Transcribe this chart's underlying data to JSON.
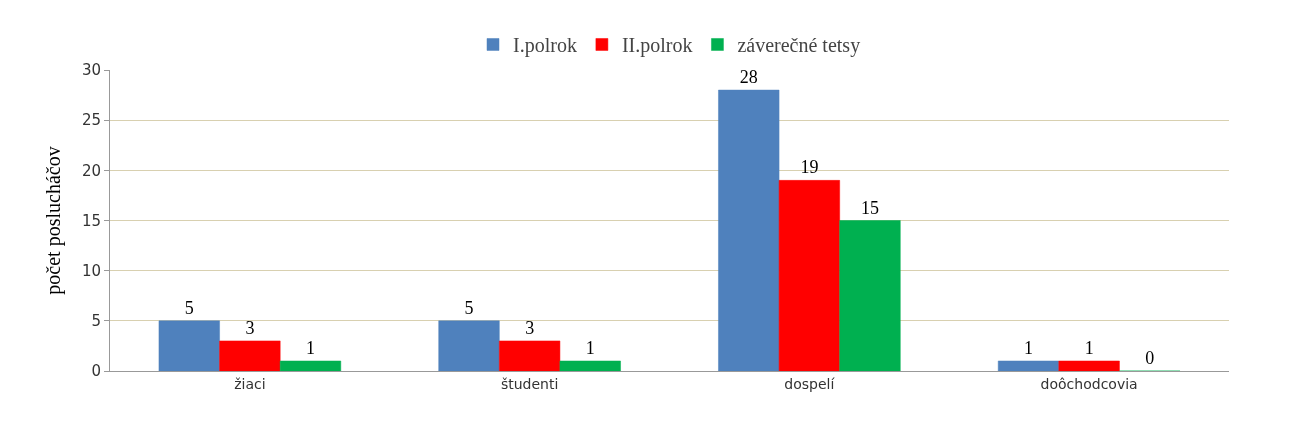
{
  "chart_data": {
    "type": "bar",
    "ylabel": "počet poslucháčov",
    "categories": [
      "žiaci",
      "študenti",
      "dospelí",
      "doôchodcovia"
    ],
    "series": [
      {
        "name": "I.polrok",
        "color": "#4f81bd",
        "values": [
          5,
          5,
          28,
          1
        ]
      },
      {
        "name": "II.polrok",
        "color": "#ff0000",
        "values": [
          3,
          3,
          19,
          1
        ]
      },
      {
        "name": "záverečné tetsy",
        "color": "#00b050",
        "values": [
          1,
          1,
          15,
          0
        ]
      }
    ],
    "ylim": [
      0,
      30
    ],
    "yticks": [
      0,
      5,
      10,
      15,
      20,
      25,
      30
    ],
    "grid": "y",
    "legend": "top",
    "data_labels": true
  }
}
